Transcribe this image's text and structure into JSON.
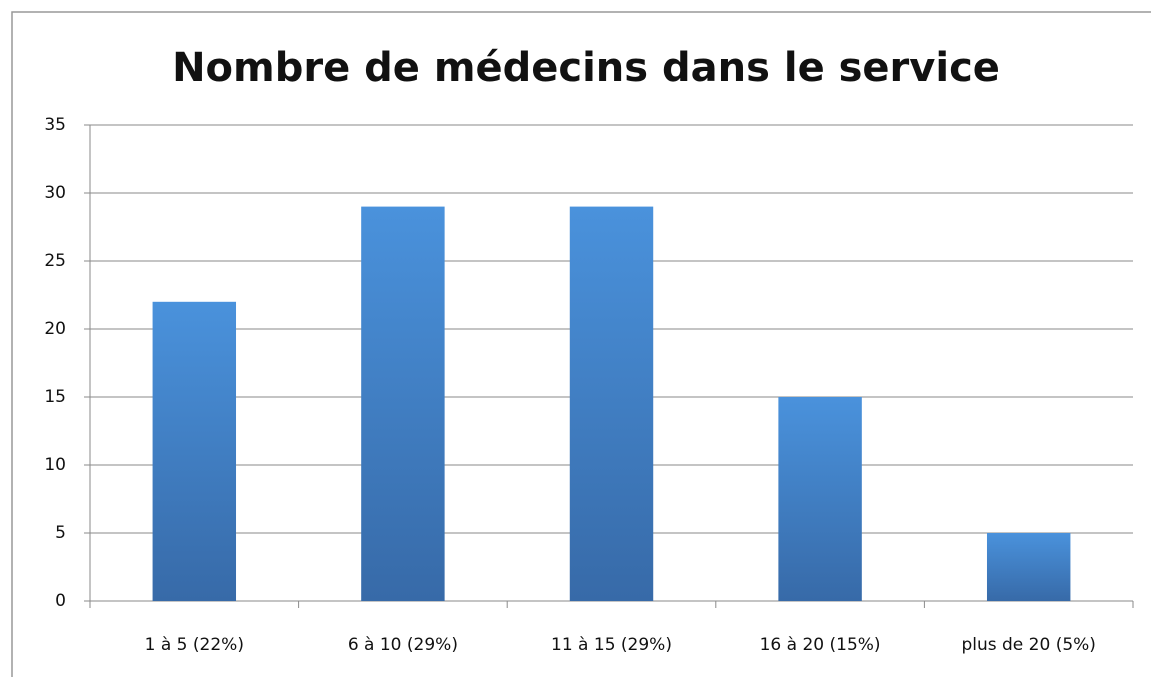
{
  "chart_data": {
    "type": "bar",
    "title": "Nombre de médecins dans le service",
    "categories": [
      "1 à 5 (22%)",
      "6 à 10 (29%)",
      "11 à 15 (29%)",
      "16 à 20 (15%)",
      "plus de 20 (5%)"
    ],
    "values": [
      22,
      29,
      29,
      15,
      5
    ],
    "color": "#3f7fc6",
    "ylim": [
      0,
      35
    ],
    "yticks": [
      0,
      5,
      10,
      15,
      20,
      25,
      30,
      35
    ],
    "grid": true
  }
}
